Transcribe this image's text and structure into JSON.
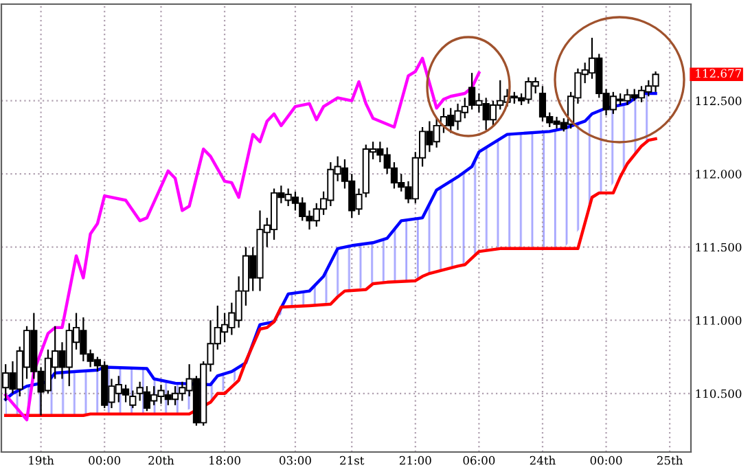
{
  "chart_data": {
    "type": "candlestick",
    "categories": [
      null,
      null,
      null,
      null,
      null,
      "19th",
      null,
      null,
      null,
      null,
      null,
      null,
      null,
      null,
      "00:00",
      null,
      null,
      null,
      null,
      null,
      null,
      null,
      "20th",
      null,
      null,
      null,
      null,
      null,
      null,
      null,
      null,
      "18:00",
      null,
      null,
      null,
      null,
      null,
      null,
      null,
      null,
      null,
      "03:00",
      null,
      null,
      null,
      null,
      null,
      null,
      null,
      "21st",
      null,
      null,
      null,
      null,
      null,
      null,
      null,
      null,
      "21:00",
      null,
      null,
      null,
      null,
      null,
      null,
      null,
      null,
      "06:00",
      null,
      null,
      null,
      null,
      null,
      null,
      null,
      null,
      "24th",
      null,
      null,
      null,
      null,
      null,
      null,
      null,
      null,
      "00:00",
      null,
      null,
      null,
      null,
      null,
      null,
      null,
      null,
      "25th"
    ],
    "ohlc": [
      [
        110.54,
        110.7,
        110.45,
        110.64
      ],
      [
        110.64,
        110.72,
        110.5,
        110.53
      ],
      [
        110.53,
        110.82,
        110.48,
        110.79
      ],
      [
        110.68,
        110.96,
        110.6,
        110.93
      ],
      [
        110.93,
        111.05,
        110.6,
        110.65
      ],
      [
        110.65,
        110.68,
        110.35,
        110.51
      ],
      [
        110.52,
        110.8,
        110.5,
        110.74
      ],
      [
        110.68,
        110.96,
        110.6,
        110.79
      ],
      [
        110.79,
        110.85,
        110.6,
        110.68
      ],
      [
        110.68,
        110.98,
        110.55,
        110.93
      ],
      [
        110.85,
        111.05,
        110.8,
        110.95
      ],
      [
        110.93,
        111.02,
        110.72,
        110.77
      ],
      [
        110.77,
        110.8,
        110.68,
        110.72
      ],
      [
        110.73,
        110.75,
        110.65,
        110.69
      ],
      [
        110.69,
        110.72,
        110.4,
        110.42
      ],
      [
        110.44,
        110.6,
        110.4,
        110.55
      ],
      [
        110.5,
        110.62,
        110.44,
        110.56
      ],
      [
        110.53,
        110.56,
        110.44,
        110.49
      ],
      [
        110.42,
        110.52,
        110.4,
        110.48
      ],
      [
        110.5,
        110.58,
        110.45,
        110.54
      ],
      [
        110.51,
        110.55,
        110.38,
        110.4
      ],
      [
        110.45,
        110.55,
        110.42,
        110.49
      ],
      [
        110.48,
        110.56,
        110.43,
        110.52
      ],
      [
        110.49,
        110.52,
        110.42,
        110.46
      ],
      [
        110.46,
        110.55,
        110.42,
        110.5
      ],
      [
        110.5,
        110.58,
        110.45,
        110.54
      ],
      [
        110.52,
        110.7,
        110.48,
        110.6
      ],
      [
        110.6,
        110.62,
        110.28,
        110.3
      ],
      [
        110.3,
        110.72,
        110.28,
        110.7
      ],
      [
        110.7,
        111.0,
        110.65,
        110.84
      ],
      [
        110.84,
        111.1,
        110.8,
        110.95
      ],
      [
        110.92,
        111.05,
        110.85,
        110.97
      ],
      [
        110.95,
        111.12,
        110.9,
        111.05
      ],
      [
        111.0,
        111.3,
        110.95,
        111.2
      ],
      [
        111.2,
        111.5,
        111.1,
        111.44
      ],
      [
        111.44,
        111.5,
        111.2,
        111.29
      ],
      [
        111.29,
        111.75,
        111.2,
        111.62
      ],
      [
        111.6,
        111.7,
        111.5,
        111.65
      ],
      [
        111.62,
        111.9,
        111.55,
        111.87
      ],
      [
        111.87,
        111.92,
        111.8,
        111.84
      ],
      [
        111.82,
        111.9,
        111.78,
        111.86
      ],
      [
        111.84,
        111.88,
        111.75,
        111.8
      ],
      [
        111.8,
        111.84,
        111.68,
        111.71
      ],
      [
        111.71,
        111.75,
        111.62,
        111.68
      ],
      [
        111.68,
        111.8,
        111.64,
        111.76
      ],
      [
        111.76,
        111.88,
        111.72,
        111.83
      ],
      [
        111.82,
        112.08,
        111.78,
        112.03
      ],
      [
        112.0,
        112.12,
        111.95,
        112.05
      ],
      [
        112.04,
        112.1,
        111.9,
        111.95
      ],
      [
        111.95,
        112.0,
        111.7,
        111.75
      ],
      [
        111.76,
        111.9,
        111.72,
        111.86
      ],
      [
        111.87,
        112.2,
        111.84,
        112.17
      ],
      [
        112.15,
        112.22,
        112.1,
        112.17
      ],
      [
        112.17,
        112.22,
        112.08,
        112.13
      ],
      [
        112.13,
        112.18,
        112.0,
        112.04
      ],
      [
        112.04,
        112.08,
        111.9,
        111.94
      ],
      [
        111.94,
        112.0,
        111.88,
        111.91
      ],
      [
        111.91,
        111.95,
        111.8,
        111.83
      ],
      [
        111.83,
        112.15,
        111.8,
        112.11
      ],
      [
        112.11,
        112.32,
        112.05,
        112.29
      ],
      [
        112.29,
        112.36,
        112.15,
        112.2
      ],
      [
        112.22,
        112.38,
        112.18,
        112.33
      ],
      [
        112.33,
        112.45,
        112.28,
        112.39
      ],
      [
        112.4,
        112.45,
        112.28,
        112.33
      ],
      [
        112.36,
        112.48,
        112.3,
        112.43
      ],
      [
        112.42,
        112.52,
        112.38,
        112.46
      ],
      [
        112.59,
        112.69,
        112.44,
        112.47
      ],
      [
        112.47,
        112.55,
        112.42,
        112.5
      ],
      [
        112.48,
        112.52,
        112.3,
        112.37
      ],
      [
        112.37,
        112.5,
        112.33,
        112.47
      ],
      [
        112.47,
        112.64,
        112.44,
        112.5
      ],
      [
        112.49,
        112.58,
        112.46,
        112.53
      ],
      [
        112.53,
        112.56,
        112.48,
        112.52
      ],
      [
        112.52,
        112.55,
        112.47,
        112.5
      ],
      [
        112.51,
        112.66,
        112.48,
        112.63
      ],
      [
        112.6,
        112.66,
        112.55,
        112.63
      ],
      [
        112.55,
        112.6,
        112.36,
        112.39
      ],
      [
        112.39,
        112.42,
        112.32,
        112.35
      ],
      [
        112.36,
        112.39,
        112.31,
        112.34
      ],
      [
        112.35,
        112.38,
        112.29,
        112.31
      ],
      [
        112.34,
        112.56,
        112.31,
        112.53
      ],
      [
        112.52,
        112.72,
        112.48,
        112.69
      ],
      [
        112.68,
        112.76,
        112.62,
        112.71
      ],
      [
        112.69,
        112.93,
        112.65,
        112.79
      ],
      [
        112.79,
        112.82,
        112.52,
        112.55
      ],
      [
        112.55,
        112.58,
        112.4,
        112.44
      ],
      [
        112.44,
        112.56,
        112.41,
        112.53
      ],
      [
        112.51,
        112.55,
        112.47,
        112.5
      ],
      [
        112.5,
        112.58,
        112.47,
        112.54
      ],
      [
        112.54,
        112.58,
        112.5,
        112.52
      ],
      [
        112.52,
        112.6,
        112.49,
        112.57
      ],
      [
        112.56,
        112.64,
        112.53,
        112.6
      ],
      [
        112.6,
        112.7,
        112.56,
        112.68
      ],
      null,
      null
    ],
    "series": [
      {
        "type": "line",
        "color": "#0000ff",
        "values": [
          110.46,
          110.5,
          null,
          110.55,
          null,
          null,
          110.58,
          110.64,
          null,
          null,
          110.65,
          null,
          null,
          110.66,
          110.68,
          null,
          null,
          null,
          null,
          null,
          110.67,
          110.6,
          null,
          null,
          110.57,
          null,
          null,
          null,
          null,
          110.56,
          110.62,
          null,
          110.65,
          null,
          110.71,
          null,
          110.97,
          null,
          110.99,
          null,
          111.18,
          null,
          null,
          111.2,
          null,
          111.3,
          null,
          111.49,
          null,
          111.51,
          null,
          null,
          111.53,
          null,
          111.56,
          null,
          111.68,
          null,
          null,
          111.7,
          null,
          111.89,
          null,
          null,
          111.98,
          null,
          112.05,
          112.15,
          null,
          112.21,
          null,
          112.27,
          null,
          null,
          null,
          null,
          null,
          112.29,
          null,
          112.31,
          null,
          null,
          112.36,
          112.41,
          null,
          112.45,
          null,
          null,
          112.48,
          null,
          112.55,
          null,
          112.55,
          null,
          null
        ],
        "lower": [
          110.35,
          110.35,
          null,
          110.35,
          null,
          null,
          110.35,
          110.35,
          null,
          null,
          110.35,
          null,
          null,
          110.36,
          110.36,
          null,
          null,
          null,
          null,
          null,
          110.36,
          110.36,
          null,
          null,
          110.36,
          null,
          null,
          null,
          null,
          110.44,
          110.5,
          null,
          110.55,
          null,
          110.72,
          null,
          110.94,
          null,
          110.99,
          null,
          111.09,
          null,
          null,
          111.1,
          null,
          111.11,
          null,
          111.16,
          null,
          111.2,
          null,
          null,
          111.25,
          null,
          111.26,
          null,
          111.26,
          null,
          null,
          111.3,
          null,
          111.33,
          null,
          null,
          111.37,
          null,
          111.42,
          111.47,
          null,
          111.49,
          null,
          111.49,
          null,
          null,
          null,
          null,
          null,
          111.49,
          null,
          111.49,
          null,
          null,
          111.67,
          111.84,
          null,
          111.87,
          null,
          null,
          112.07,
          null,
          112.19,
          null,
          112.24,
          null,
          null
        ],
        "upper": [
          110.46,
          110.5,
          null,
          110.55,
          null,
          null,
          110.58,
          110.64,
          null,
          null,
          110.65,
          null,
          null,
          110.66,
          110.68,
          null,
          null,
          null,
          null,
          null,
          110.67,
          110.6,
          null,
          null,
          110.57,
          null,
          null,
          null,
          null,
          110.56,
          110.62,
          null,
          110.65,
          null,
          110.71,
          null,
          110.97,
          null,
          110.99,
          null,
          111.18,
          null,
          null,
          111.2,
          null,
          111.3,
          null,
          111.49,
          null,
          111.51,
          null,
          null,
          111.53,
          null,
          111.56,
          null,
          111.68,
          null,
          null,
          111.7,
          null,
          111.89,
          null,
          null,
          111.98,
          null,
          112.05,
          112.15,
          null,
          112.21,
          null,
          112.27,
          null,
          null,
          null,
          null,
          null,
          112.29,
          null,
          112.31,
          null,
          null,
          112.36,
          112.41,
          null,
          112.45,
          null,
          null,
          112.48,
          null,
          112.55,
          null,
          112.55,
          null,
          null
        ]
      },
      {
        "type": "line",
        "color": "#ff0000",
        "values": [
          110.35,
          null,
          null,
          null,
          null,
          null,
          null,
          null,
          null,
          null,
          null,
          110.35,
          110.36,
          null,
          null,
          null,
          null,
          null,
          null,
          null,
          null,
          null,
          null,
          null,
          null,
          null,
          110.36,
          null,
          null,
          110.44,
          110.5,
          110.5,
          null,
          110.59,
          110.72,
          null,
          110.94,
          110.95,
          110.99,
          111.09,
          null,
          null,
          null,
          111.1,
          null,
          null,
          111.11,
          111.16,
          111.2,
          null,
          null,
          111.21,
          111.25,
          null,
          111.26,
          null,
          null,
          null,
          111.27,
          111.3,
          111.32,
          null,
          null,
          null,
          111.37,
          111.38,
          null,
          111.47,
          null,
          null,
          111.49,
          null,
          null,
          null,
          null,
          null,
          null,
          null,
          null,
          null,
          null,
          111.49,
          null,
          111.84,
          111.87,
          null,
          111.87,
          111.98,
          112.07,
          null,
          112.19,
          112.23,
          112.24,
          null,
          null
        ]
      },
      {
        "type": "line",
        "color": "#ff00ff",
        "values": [
          110.49,
          null,
          null,
          110.32,
          110.65,
          null,
          110.91,
          110.95,
          110.95,
          null,
          111.44,
          111.29,
          111.59,
          111.66,
          111.85,
          null,
          null,
          111.82,
          null,
          111.68,
          111.7,
          null,
          null,
          112.02,
          111.97,
          111.75,
          111.78,
          null,
          112.17,
          112.12,
          null,
          111.95,
          111.94,
          111.84,
          null,
          112.27,
          112.22,
          112.36,
          112.41,
          112.33,
          null,
          112.46,
          null,
          112.48,
          112.37,
          112.46,
          null,
          112.52,
          null,
          112.5,
          112.63,
          112.48,
          112.38,
          null,
          null,
          112.32,
          null,
          112.67,
          112.7,
          112.79,
          null,
          112.45,
          112.51,
          112.53,
          null,
          112.55,
          112.59,
          112.69,
          null,
          null,
          null,
          null,
          null,
          null,
          null,
          null,
          null,
          null,
          null,
          null,
          null,
          null,
          null,
          null,
          null,
          null,
          null,
          null,
          null,
          null,
          null,
          null,
          null,
          null,
          null
        ]
      }
    ],
    "ylim": [
      110.1,
      113.16
    ],
    "yticks": [
      {
        "value": 110.5,
        "label": "110.500"
      },
      {
        "value": 111.0,
        "label": "111.000"
      },
      {
        "value": 111.5,
        "label": "111.500"
      },
      {
        "value": 112.0,
        "label": "112.000"
      },
      {
        "value": 112.5,
        "label": "112.500"
      }
    ],
    "annotations": [
      "112.677"
    ],
    "grid": true
  }
}
